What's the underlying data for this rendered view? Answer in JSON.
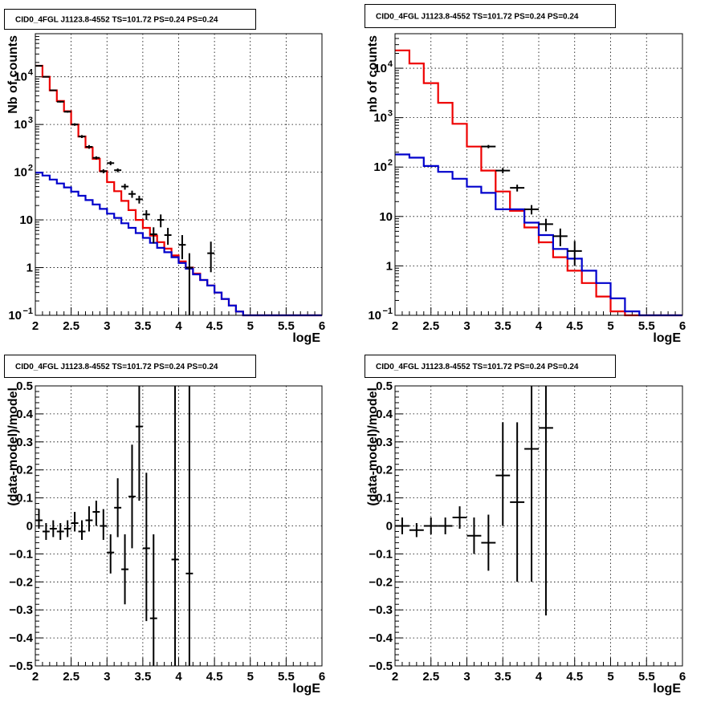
{
  "chart_data": [
    {
      "type": "histogram",
      "title": "CID0_4FGL J1123.8-4552 TS=101.72 PS=0.24 PS=0.24",
      "xlabel": "logE",
      "ylabel": "Nb of counts",
      "log_y": true,
      "xlim": [
        2,
        6
      ],
      "ylim": [
        0.1,
        80000
      ],
      "xticks": [
        "2",
        "2.5",
        "3",
        "3.5",
        "4",
        "4.5",
        "5",
        "5.5",
        "6"
      ],
      "yticks": [
        {
          "value": 0.1,
          "label": "10",
          "exp": "−1"
        },
        {
          "value": 1,
          "label": "1",
          "exp": ""
        },
        {
          "value": 10,
          "label": "10",
          "exp": ""
        },
        {
          "value": 100,
          "label": "10",
          "exp": "2"
        },
        {
          "value": 1000,
          "label": "10",
          "exp": "3"
        },
        {
          "value": 10000,
          "label": "10",
          "exp": "4"
        }
      ],
      "grid": true,
      "series": [
        {
          "color": "#ee0000",
          "style": "step",
          "bin_width": 0.1,
          "bin_start": 2.0,
          "values": [
            17000,
            10000,
            5200,
            3100,
            1900,
            1000,
            560,
            330,
            190,
            105,
            62,
            40,
            25,
            16,
            10,
            6.8,
            4.7,
            3.4,
            2.5,
            1.8,
            1.35,
            1.0,
            0.75,
            0.55,
            0.42,
            0.3,
            0.22,
            0.16,
            0.12,
            0.1,
            0.1,
            0.1,
            0.1,
            0.1,
            0.1,
            0.1,
            0.1,
            0.1,
            0.1,
            0.1
          ]
        },
        {
          "color": "#0000cc",
          "style": "step",
          "bin_width": 0.1,
          "bin_start": 2.0,
          "values": [
            98,
            85,
            70,
            58,
            48,
            39,
            32,
            26,
            21,
            17,
            13.5,
            11,
            8.5,
            6.8,
            5.3,
            4.2,
            3.3,
            2.6,
            2.1,
            1.65,
            1.25,
            0.95,
            0.72,
            0.55,
            0.42,
            0.3,
            0.22,
            0.16,
            0.12,
            0.1,
            0.1,
            0.1,
            0.1,
            0.1,
            0.1,
            0.1,
            0.1,
            0.1,
            0.1,
            0.1
          ]
        }
      ],
      "points": [
        {
          "x": 2.05,
          "y": 17000,
          "xerr": 0.05,
          "ylo": 16800,
          "yhi": 17200
        },
        {
          "x": 2.15,
          "y": 10000,
          "xerr": 0.05,
          "ylo": 9800,
          "yhi": 10200
        },
        {
          "x": 2.25,
          "y": 5200,
          "xerr": 0.05,
          "ylo": 5050,
          "yhi": 5350
        },
        {
          "x": 2.35,
          "y": 3000,
          "xerr": 0.05,
          "ylo": 2890,
          "yhi": 3110
        },
        {
          "x": 2.45,
          "y": 1850,
          "xerr": 0.05,
          "ylo": 1770,
          "yhi": 1930
        },
        {
          "x": 2.55,
          "y": 1000,
          "xerr": 0.05,
          "ylo": 940,
          "yhi": 1060
        },
        {
          "x": 2.65,
          "y": 560,
          "xerr": 0.05,
          "ylo": 520,
          "yhi": 600
        },
        {
          "x": 2.75,
          "y": 340,
          "xerr": 0.05,
          "ylo": 310,
          "yhi": 370
        },
        {
          "x": 2.85,
          "y": 200,
          "xerr": 0.05,
          "ylo": 185,
          "yhi": 215
        },
        {
          "x": 2.95,
          "y": 105,
          "xerr": 0.05,
          "ylo": 95,
          "yhi": 115
        },
        {
          "x": 3.05,
          "y": 155,
          "xerr": 0.05,
          "ylo": 140,
          "yhi": 170
        },
        {
          "x": 3.15,
          "y": 110,
          "xerr": 0.05,
          "ylo": 100,
          "yhi": 120
        },
        {
          "x": 3.25,
          "y": 50,
          "xerr": 0.05,
          "ylo": 43,
          "yhi": 57
        },
        {
          "x": 3.35,
          "y": 35,
          "xerr": 0.05,
          "ylo": 29,
          "yhi": 41
        },
        {
          "x": 3.45,
          "y": 27,
          "xerr": 0.05,
          "ylo": 22,
          "yhi": 32
        },
        {
          "x": 3.55,
          "y": 13,
          "xerr": 0.05,
          "ylo": 10,
          "yhi": 16
        },
        {
          "x": 3.65,
          "y": 5,
          "xerr": 0.05,
          "ylo": 3.2,
          "yhi": 7
        },
        {
          "x": 3.75,
          "y": 10,
          "xerr": 0.05,
          "ylo": 7,
          "yhi": 13
        },
        {
          "x": 3.85,
          "y": 4.8,
          "xerr": 0.05,
          "ylo": 3,
          "yhi": 6.8
        },
        {
          "x": 4.05,
          "y": 3,
          "xerr": 0.05,
          "ylo": 1.5,
          "yhi": 4.8
        },
        {
          "x": 4.15,
          "y": 1,
          "xerr": 0.05,
          "ylo": 0.1,
          "yhi": 2
        },
        {
          "x": 4.45,
          "y": 2,
          "xerr": 0.05,
          "ylo": 0.8,
          "yhi": 3.5
        }
      ]
    },
    {
      "type": "histogram",
      "title": "CID0_4FGL J1123.8-4552 TS=101.72 PS=0.24 PS=0.24",
      "xlabel": "logE",
      "ylabel": "nb of counts",
      "log_y": true,
      "xlim": [
        2,
        6
      ],
      "ylim": [
        0.1,
        50000
      ],
      "xticks": [
        "2",
        "2.5",
        "3",
        "3.5",
        "4",
        "4.5",
        "5",
        "5.5",
        "6"
      ],
      "yticks": [
        {
          "value": 0.1,
          "label": "10",
          "exp": "−1"
        },
        {
          "value": 1,
          "label": "1",
          "exp": ""
        },
        {
          "value": 10,
          "label": "10",
          "exp": ""
        },
        {
          "value": 100,
          "label": "10",
          "exp": "2"
        },
        {
          "value": 1000,
          "label": "10",
          "exp": "3"
        },
        {
          "value": 10000,
          "label": "10",
          "exp": "4"
        }
      ],
      "grid": true,
      "series": [
        {
          "color": "#ee0000",
          "style": "step",
          "bin_width": 0.2,
          "bin_start": 2.0,
          "values": [
            23000,
            12500,
            5000,
            2000,
            750,
            260,
            85,
            32,
            13,
            6,
            3,
            1.5,
            0.8,
            0.45,
            0.24,
            0.12,
            0.1,
            0.1,
            0.1,
            0.1
          ]
        },
        {
          "color": "#0000cc",
          "style": "step",
          "bin_width": 0.2,
          "bin_start": 2.0,
          "values": [
            180,
            155,
            105,
            80,
            58,
            40,
            30,
            14,
            14,
            7.5,
            4.2,
            2.2,
            1.4,
            0.8,
            0.45,
            0.22,
            0.12,
            0.1,
            0.1,
            0.1
          ]
        }
      ],
      "points": [
        {
          "x": 3.3,
          "y": 260,
          "xerr": 0.1,
          "ylo": 240,
          "yhi": 280
        },
        {
          "x": 3.5,
          "y": 85,
          "xerr": 0.1,
          "ylo": 75,
          "yhi": 95
        },
        {
          "x": 3.7,
          "y": 38,
          "xerr": 0.1,
          "ylo": 32,
          "yhi": 44
        },
        {
          "x": 3.9,
          "y": 14,
          "xerr": 0.1,
          "ylo": 11,
          "yhi": 17
        },
        {
          "x": 4.1,
          "y": 7,
          "xerr": 0.1,
          "ylo": 5,
          "yhi": 9
        },
        {
          "x": 4.3,
          "y": 4,
          "xerr": 0.1,
          "ylo": 2.5,
          "yhi": 5.7
        },
        {
          "x": 4.5,
          "y": 2,
          "xerr": 0.1,
          "ylo": 1,
          "yhi": 3.2
        }
      ]
    },
    {
      "type": "scatter",
      "title": "CID0_4FGL J1123.8-4552 TS=101.72 PS=0.24 PS=0.24",
      "xlabel": "logE",
      "ylabel": "(data-model)/model",
      "log_y": false,
      "xlim": [
        2,
        6
      ],
      "ylim": [
        -0.5,
        0.5
      ],
      "xticks": [
        "2",
        "2.5",
        "3",
        "3.5",
        "4",
        "4.5",
        "5",
        "5.5",
        "6"
      ],
      "yticks": [
        {
          "value": -0.5,
          "label": "−0.5"
        },
        {
          "value": -0.4,
          "label": "−0.4"
        },
        {
          "value": -0.3,
          "label": "−0.3"
        },
        {
          "value": -0.2,
          "label": "−0.2"
        },
        {
          "value": -0.1,
          "label": "−0.1"
        },
        {
          "value": 0,
          "label": "0"
        },
        {
          "value": 0.1,
          "label": "0.1"
        },
        {
          "value": 0.2,
          "label": "0.2"
        },
        {
          "value": 0.3,
          "label": "0.3"
        },
        {
          "value": 0.4,
          "label": "0.4"
        },
        {
          "value": 0.5,
          "label": "0.5"
        }
      ],
      "grid": true,
      "points": [
        {
          "x": 2.05,
          "y": 0.02,
          "xerr": 0.05,
          "ylo": -0.01,
          "yhi": 0.06
        },
        {
          "x": 2.15,
          "y": -0.02,
          "xerr": 0.05,
          "ylo": -0.05,
          "yhi": 0.01
        },
        {
          "x": 2.25,
          "y": -0.01,
          "xerr": 0.05,
          "ylo": -0.04,
          "yhi": 0.02
        },
        {
          "x": 2.35,
          "y": -0.02,
          "xerr": 0.05,
          "ylo": -0.05,
          "yhi": 0.01
        },
        {
          "x": 2.45,
          "y": -0.01,
          "xerr": 0.05,
          "ylo": -0.04,
          "yhi": 0.02
        },
        {
          "x": 2.55,
          "y": 0.01,
          "xerr": 0.05,
          "ylo": -0.02,
          "yhi": 0.05
        },
        {
          "x": 2.65,
          "y": -0.02,
          "xerr": 0.05,
          "ylo": -0.05,
          "yhi": 0.02
        },
        {
          "x": 2.75,
          "y": 0.02,
          "xerr": 0.05,
          "ylo": -0.02,
          "yhi": 0.07
        },
        {
          "x": 2.85,
          "y": 0.05,
          "xerr": 0.05,
          "ylo": 0.0,
          "yhi": 0.09
        },
        {
          "x": 2.95,
          "y": 0.0,
          "xerr": 0.05,
          "ylo": -0.05,
          "yhi": 0.06
        },
        {
          "x": 3.05,
          "y": -0.095,
          "xerr": 0.05,
          "ylo": -0.17,
          "yhi": -0.03
        },
        {
          "x": 3.15,
          "y": 0.065,
          "xerr": 0.05,
          "ylo": -0.04,
          "yhi": 0.17
        },
        {
          "x": 3.25,
          "y": -0.155,
          "xerr": 0.05,
          "ylo": -0.28,
          "yhi": -0.03
        },
        {
          "x": 3.35,
          "y": 0.105,
          "xerr": 0.05,
          "ylo": -0.08,
          "yhi": 0.29
        },
        {
          "x": 3.45,
          "y": 0.355,
          "xerr": 0.05,
          "ylo": 0.09,
          "yhi": 0.5
        },
        {
          "x": 3.55,
          "y": -0.08,
          "xerr": 0.05,
          "ylo": -0.34,
          "yhi": 0.19
        },
        {
          "x": 3.65,
          "y": -0.33,
          "xerr": 0.05,
          "ylo": -0.5,
          "yhi": -0.03
        },
        {
          "x": 3.95,
          "y": -0.12,
          "xerr": 0.05,
          "ylo": -0.5,
          "yhi": 0.5
        },
        {
          "x": 4.15,
          "y": -0.17,
          "xerr": 0.05,
          "ylo": -0.5,
          "yhi": 0.5
        }
      ]
    },
    {
      "type": "scatter",
      "title": "CID0_4FGL J1123.8-4552 TS=101.72 PS=0.24 PS=0.24",
      "xlabel": "logE",
      "ylabel": "(data-model)/model",
      "log_y": false,
      "xlim": [
        2,
        6
      ],
      "ylim": [
        -0.5,
        0.5
      ],
      "xticks": [
        "2",
        "2.5",
        "3",
        "3.5",
        "4",
        "4.5",
        "5",
        "5.5",
        "6"
      ],
      "yticks": [
        {
          "value": -0.5,
          "label": "−0.5"
        },
        {
          "value": -0.4,
          "label": "−0.4"
        },
        {
          "value": -0.3,
          "label": "−0.3"
        },
        {
          "value": -0.2,
          "label": "−0.2"
        },
        {
          "value": -0.1,
          "label": "−0.1"
        },
        {
          "value": 0,
          "label": "0"
        },
        {
          "value": 0.1,
          "label": "0.1"
        },
        {
          "value": 0.2,
          "label": "0.2"
        },
        {
          "value": 0.3,
          "label": "0.3"
        },
        {
          "value": 0.4,
          "label": "0.4"
        },
        {
          "value": 0.5,
          "label": "0.5"
        }
      ],
      "grid": true,
      "points": [
        {
          "x": 2.1,
          "y": 0.0,
          "xerr": 0.1,
          "ylo": -0.03,
          "yhi": 0.03
        },
        {
          "x": 2.3,
          "y": -0.015,
          "xerr": 0.1,
          "ylo": -0.04,
          "yhi": 0.01
        },
        {
          "x": 2.5,
          "y": 0.0,
          "xerr": 0.1,
          "ylo": -0.03,
          "yhi": 0.03
        },
        {
          "x": 2.7,
          "y": 0.0,
          "xerr": 0.1,
          "ylo": -0.03,
          "yhi": 0.03
        },
        {
          "x": 2.9,
          "y": 0.03,
          "xerr": 0.1,
          "ylo": -0.01,
          "yhi": 0.07
        },
        {
          "x": 3.1,
          "y": -0.035,
          "xerr": 0.1,
          "ylo": -0.1,
          "yhi": 0.03
        },
        {
          "x": 3.3,
          "y": -0.06,
          "xerr": 0.1,
          "ylo": -0.16,
          "yhi": 0.04
        },
        {
          "x": 3.5,
          "y": 0.18,
          "xerr": 0.1,
          "ylo": 0.0,
          "yhi": 0.37
        },
        {
          "x": 3.7,
          "y": 0.085,
          "xerr": 0.1,
          "ylo": -0.2,
          "yhi": 0.37
        },
        {
          "x": 3.9,
          "y": 0.275,
          "xerr": 0.1,
          "ylo": -0.2,
          "yhi": 0.5
        },
        {
          "x": 4.1,
          "y": 0.35,
          "xerr": 0.1,
          "ylo": -0.32,
          "yhi": 0.5
        }
      ]
    }
  ]
}
